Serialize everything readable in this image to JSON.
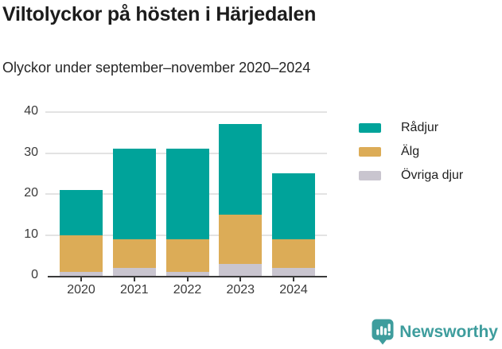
{
  "header": {
    "title": "Viltolyckor på hösten i Härjedalen",
    "subtitle": "Olyckor under september–november 2020–2024"
  },
  "chart_data": {
    "type": "bar",
    "stacked": true,
    "title": "Viltolyckor på hösten i Härjedalen",
    "subtitle": "Olyckor under september–november 2020–2024",
    "categories": [
      "2020",
      "2021",
      "2022",
      "2023",
      "2024"
    ],
    "series": [
      {
        "name": "Rådjur",
        "color": "#00a39a",
        "values": [
          11,
          22,
          22,
          22,
          16
        ]
      },
      {
        "name": "Älg",
        "color": "#dcac57",
        "values": [
          9,
          7,
          8,
          12,
          7
        ]
      },
      {
        "name": "Övriga djur",
        "color": "#c9c5cf",
        "values": [
          1,
          2,
          1,
          3,
          2
        ]
      }
    ],
    "totals": [
      21,
      31,
      31,
      37,
      25
    ],
    "stack_order_bottom_to_top": [
      "Övriga djur",
      "Älg",
      "Rådjur"
    ],
    "xlabel": "",
    "ylabel": "",
    "ylim": [
      0,
      40
    ],
    "yticks": [
      0,
      10,
      20,
      30,
      40
    ],
    "grid": "horizontal",
    "legend_position": "right",
    "axis_color": "#3a3a3a",
    "gridline_color": "#e3e3e3"
  },
  "footer": {
    "brand": "Newsworthy",
    "brand_color": "#3e9d9d",
    "logo_icon": "bar-chart-speech-bubble-icon"
  }
}
